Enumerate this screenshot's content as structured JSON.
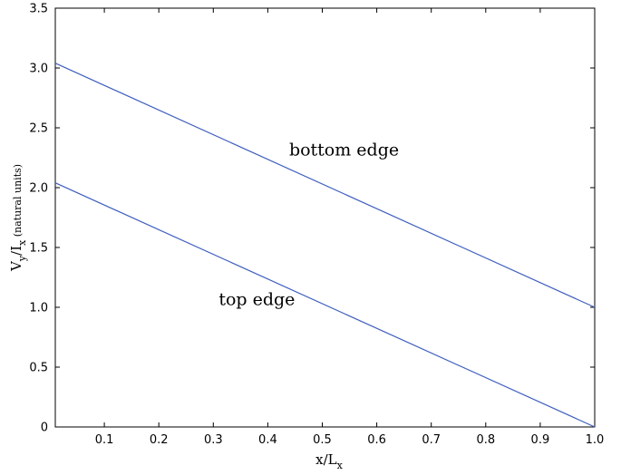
{
  "chart_data": {
    "type": "line",
    "xlabel": {
      "main": "x/L",
      "sub": "x"
    },
    "ylabel": {
      "parts": [
        {
          "text": "V",
          "sub": false
        },
        {
          "text": "y",
          "sub": true
        },
        {
          "text": "/I",
          "sub": false
        },
        {
          "text": "x",
          "sub": true
        },
        {
          "text": " (natural units)",
          "sub": false,
          "small": true
        }
      ]
    },
    "xlim": [
      0.01,
      1.0
    ],
    "ylim": [
      0,
      3.5
    ],
    "xticks": [
      0.1,
      0.2,
      0.3,
      0.4,
      0.5,
      0.6,
      0.7,
      0.8,
      0.9,
      1.0
    ],
    "xtick_labels": [
      "0.1",
      "0.2",
      "0.3",
      "0.4",
      "0.5",
      "0.6",
      "0.7",
      "0.8",
      "0.9",
      "1.0"
    ],
    "yticks": [
      0,
      0.5,
      1.0,
      1.5,
      2.0,
      2.5,
      3.0,
      3.5
    ],
    "ytick_labels": [
      "0",
      "0.5",
      "1.0",
      "1.5",
      "2.0",
      "2.5",
      "3.0",
      "3.5"
    ],
    "grid": false,
    "line_color": "#3f5fbf",
    "series": [
      {
        "x": [
          0.01,
          1.0
        ],
        "y": [
          3.04,
          1.0
        ]
      },
      {
        "x": [
          0.01,
          1.0
        ],
        "y": [
          2.04,
          0.0
        ]
      }
    ],
    "annotations": [
      {
        "text": "bottom edge",
        "x": 0.54,
        "y": 2.27
      },
      {
        "text": "top edge",
        "x": 0.38,
        "y": 1.02
      }
    ]
  }
}
